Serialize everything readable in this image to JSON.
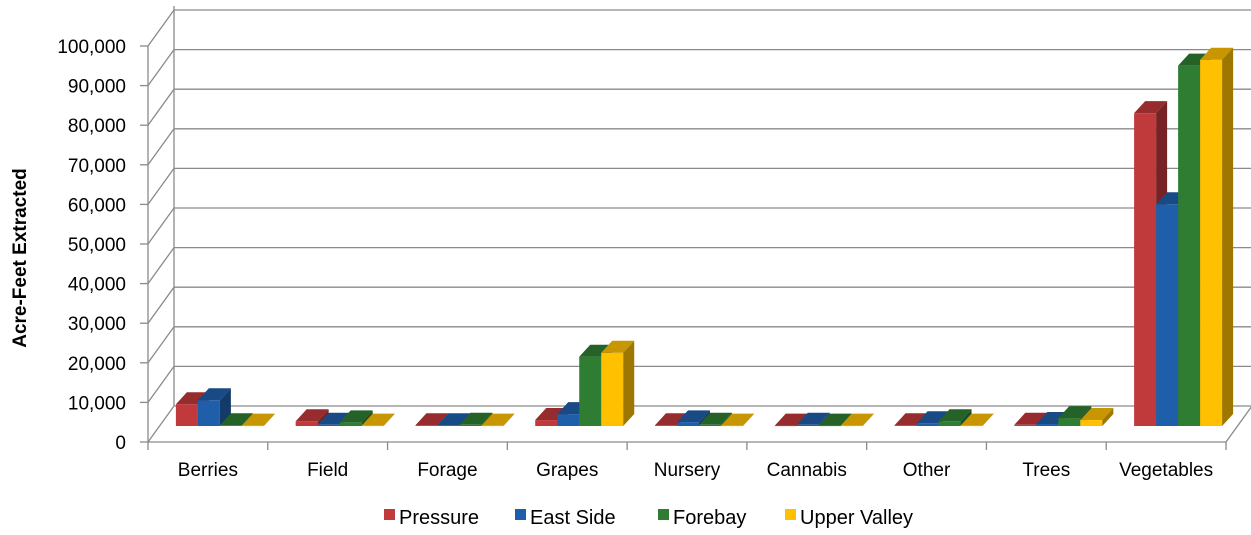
{
  "chart_data": {
    "type": "bar",
    "style": "3d-clustered-column",
    "title": "",
    "xlabel": "",
    "ylabel": "Acre-Feet Extracted",
    "ylim": [
      0,
      100000
    ],
    "yticks": [
      "0",
      "10,000",
      "20,000",
      "30,000",
      "40,000",
      "50,000",
      "60,000",
      "70,000",
      "80,000",
      "90,000",
      "100,000"
    ],
    "grid": true,
    "legend_position": "bottom",
    "categories": [
      "Berries",
      "Field",
      "Forage",
      "Grapes",
      "Nursery",
      "Cannabis",
      "Other",
      "Trees",
      "Vegetables"
    ],
    "series": [
      {
        "name": "Pressure",
        "color": "#C0393B",
        "values": [
          5500,
          1200,
          200,
          1500,
          200,
          100,
          200,
          300,
          79000
        ]
      },
      {
        "name": "East Side",
        "color": "#1F5FAA",
        "values": [
          6500,
          300,
          200,
          3000,
          900,
          300,
          700,
          500,
          56000
        ]
      },
      {
        "name": "Forebay",
        "color": "#2E7D32",
        "values": [
          200,
          900,
          300,
          17500,
          300,
          100,
          1200,
          2000,
          91000
        ]
      },
      {
        "name": "Upper Valley",
        "color": "#FFC000",
        "values": [
          100,
          100,
          100,
          18500,
          100,
          100,
          100,
          1500,
          92500
        ]
      }
    ]
  }
}
